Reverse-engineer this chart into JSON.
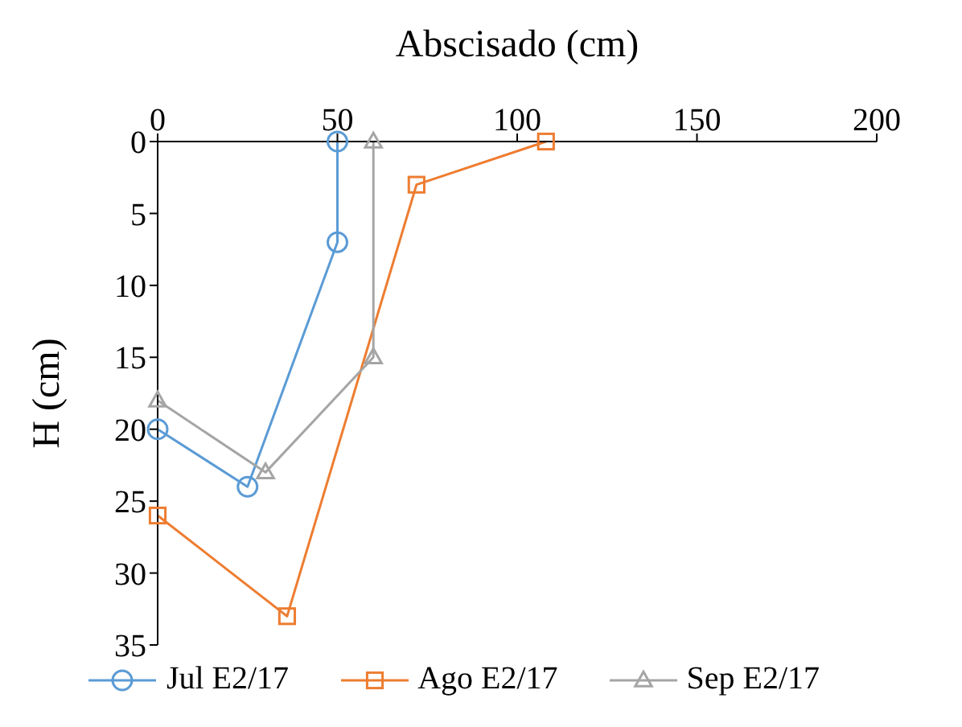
{
  "chart_data": {
    "type": "line",
    "xlabel": "Abscisado (cm)",
    "ylabel": "H (cm)",
    "xlim": [
      0,
      200
    ],
    "xticks": [
      0,
      50,
      100,
      150,
      200
    ],
    "ylim": [
      35,
      0
    ],
    "yticks": [
      0,
      5,
      10,
      15,
      20,
      25,
      30,
      35
    ],
    "legend": "bottom",
    "line_style": "solid",
    "series": [
      {
        "name": "Jul E2/17",
        "color": "#5b9bd5",
        "marker": "circle",
        "x": [
          50,
          50,
          25,
          0
        ],
        "values": [
          0,
          7,
          24,
          20
        ]
      },
      {
        "name": "Ago E2/17",
        "color": "#ed7d31",
        "marker": "square",
        "x": [
          108,
          72,
          36,
          0
        ],
        "values": [
          0,
          3,
          33,
          26
        ]
      },
      {
        "name": "Sep E2/17",
        "color": "#a5a5a5",
        "marker": "triangle",
        "x": [
          60,
          60,
          30,
          0
        ],
        "values": [
          0,
          15,
          23,
          18
        ]
      }
    ]
  }
}
